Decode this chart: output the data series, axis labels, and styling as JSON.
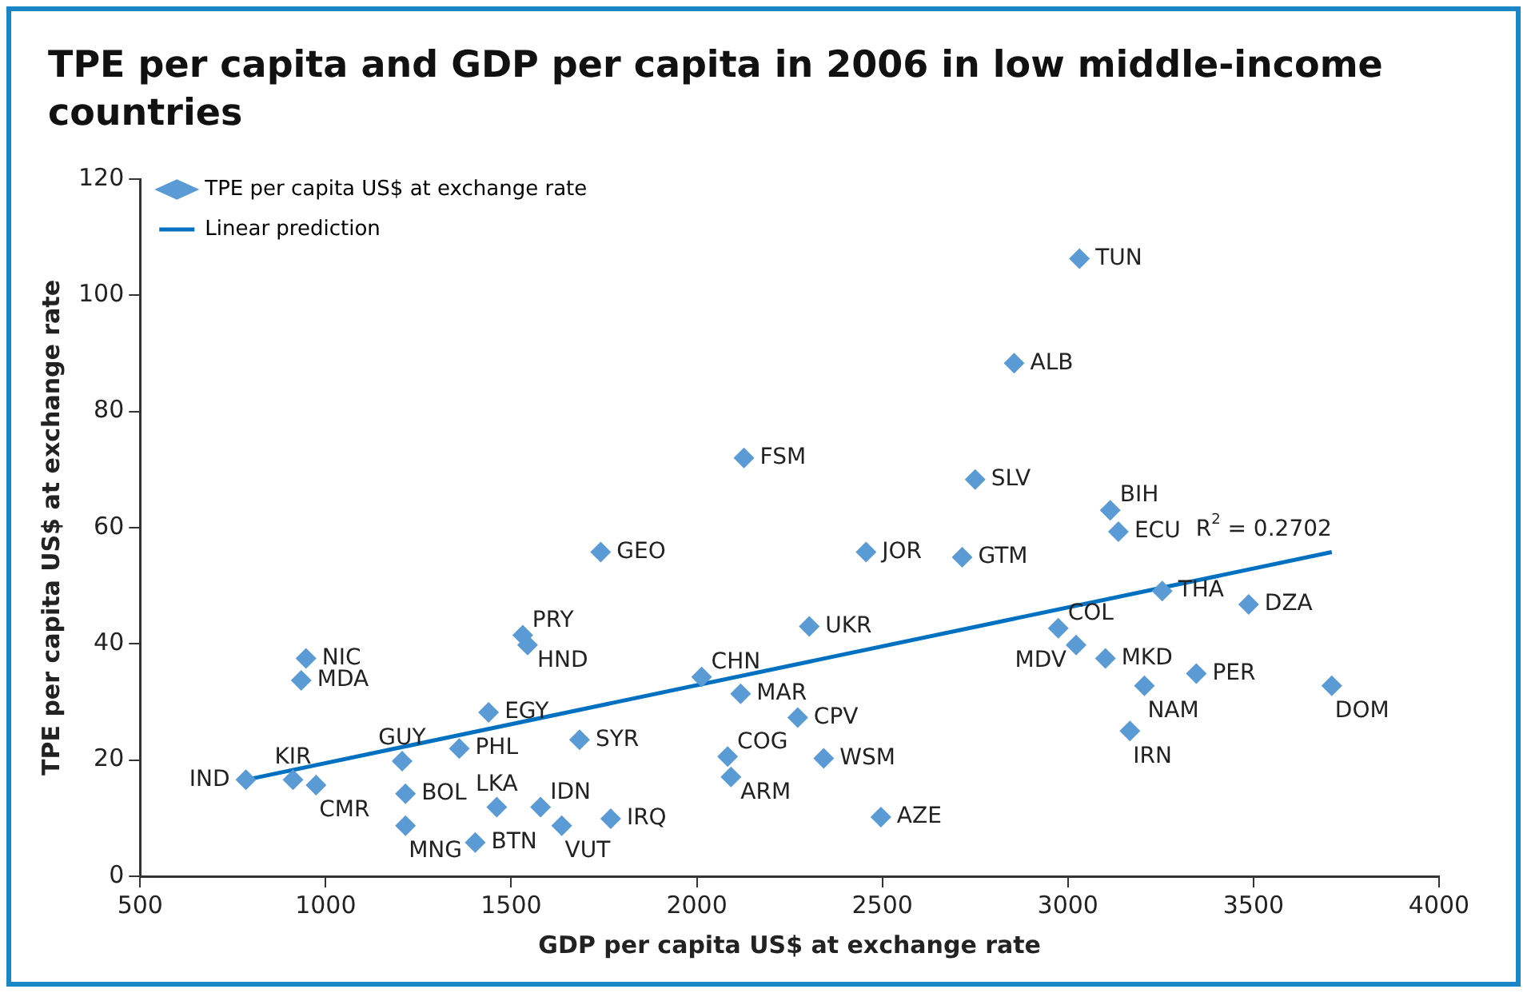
{
  "chart_data": {
    "type": "scatter",
    "title": "TPE per capita and GDP per capita in 2006 in low middle-income countries",
    "xlabel": "GDP per capita US$ at exchange rate",
    "ylabel": "TPE per capita US$ at exchange rate",
    "xlim": [
      500,
      4000
    ],
    "xticks": [
      500,
      1000,
      1500,
      2000,
      2500,
      3000,
      3500,
      4000
    ],
    "ylim": [
      0,
      120
    ],
    "yticks": [
      0,
      20,
      40,
      60,
      80,
      100,
      120
    ],
    "grid": false,
    "legend": "top left",
    "marker": "diamond",
    "series": [
      {
        "name": "TPE per capita US$ at exchange rate",
        "type": "scatter",
        "color": "#5b9bd5",
        "x": [
          785,
          912,
          974,
          947,
          934,
          1206,
          1215,
          1215,
          1360,
          1439,
          1531,
          1544,
          1461,
          1403,
          1579,
          1636,
          1768,
          1684,
          1741,
          2013,
          2118,
          2272,
          2083,
          2092,
          2342,
          2496,
          2303,
          2127,
          2456,
          2715,
          2750,
          2855,
          3031,
          3114,
          3136,
          3254,
          3487,
          2974,
          3022,
          3101,
          3206,
          3346,
          3167,
          3711
        ],
        "values": [
          16.6,
          16.6,
          15.7,
          37.5,
          33.7,
          19.8,
          14.2,
          8.7,
          22,
          28.2,
          41.5,
          39.8,
          11.9,
          5.8,
          11.9,
          8.7,
          9.9,
          23.5,
          55.8,
          34.3,
          31.4,
          27.3,
          20.6,
          17.1,
          20.3,
          10.2,
          43,
          72,
          55.8,
          54.9,
          68.3,
          88.3,
          106.3,
          63,
          59.3,
          49.1,
          46.8,
          42.7,
          39.8,
          37.5,
          32.8,
          34.9,
          25,
          32.8
        ]
      },
      {
        "name": "Linear prediction",
        "type": "line",
        "color": "#0070c0",
        "marker": "none",
        "x": [
          785,
          3711
        ],
        "values": [
          16.6,
          55.8
        ]
      }
    ],
    "annotations": [
      {
        "text": "IND",
        "x": 785,
        "y": 16.6
      },
      {
        "text": "KIR",
        "x": 912,
        "y": 16.6
      },
      {
        "text": "CMR",
        "x": 974,
        "y": 15.7
      },
      {
        "text": "NIC",
        "x": 947,
        "y": 37.5
      },
      {
        "text": "MDA",
        "x": 934,
        "y": 33.7
      },
      {
        "text": "GUY",
        "x": 1206,
        "y": 19.8
      },
      {
        "text": "BOL",
        "x": 1215,
        "y": 14.2
      },
      {
        "text": "MNG",
        "x": 1215,
        "y": 8.7
      },
      {
        "text": "PHL",
        "x": 1360,
        "y": 22
      },
      {
        "text": "EGY",
        "x": 1439,
        "y": 28.2
      },
      {
        "text": "PRY",
        "x": 1531,
        "y": 41.5
      },
      {
        "text": "HND",
        "x": 1544,
        "y": 39.8
      },
      {
        "text": "LKA",
        "x": 1461,
        "y": 11.9
      },
      {
        "text": "BTN",
        "x": 1403,
        "y": 5.8
      },
      {
        "text": "IDN",
        "x": 1579,
        "y": 11.9
      },
      {
        "text": "VUT",
        "x": 1636,
        "y": 8.7
      },
      {
        "text": "IRQ",
        "x": 1768,
        "y": 9.9
      },
      {
        "text": "SYR",
        "x": 1684,
        "y": 23.5
      },
      {
        "text": "GEO",
        "x": 1741,
        "y": 55.8
      },
      {
        "text": "CHN",
        "x": 2013,
        "y": 34.3
      },
      {
        "text": "MAR",
        "x": 2118,
        "y": 31.4
      },
      {
        "text": "CPV",
        "x": 2272,
        "y": 27.3
      },
      {
        "text": "COG",
        "x": 2083,
        "y": 20.6
      },
      {
        "text": "ARM",
        "x": 2092,
        "y": 17.1
      },
      {
        "text": "WSM",
        "x": 2342,
        "y": 20.3
      },
      {
        "text": "AZE",
        "x": 2496,
        "y": 10.2
      },
      {
        "text": "UKR",
        "x": 2303,
        "y": 43
      },
      {
        "text": "FSM",
        "x": 2127,
        "y": 72
      },
      {
        "text": "JOR",
        "x": 2456,
        "y": 55.8
      },
      {
        "text": "GTM",
        "x": 2715,
        "y": 54.9
      },
      {
        "text": "SLV",
        "x": 2750,
        "y": 68.3
      },
      {
        "text": "ALB",
        "x": 2855,
        "y": 88.3
      },
      {
        "text": "TUN",
        "x": 3031,
        "y": 106.3
      },
      {
        "text": "BIH",
        "x": 3114,
        "y": 63
      },
      {
        "text": "ECU",
        "x": 3136,
        "y": 59.3
      },
      {
        "text": "THA",
        "x": 3254,
        "y": 49.1
      },
      {
        "text": "DZA",
        "x": 3487,
        "y": 46.8
      },
      {
        "text": "COL",
        "x": 2974,
        "y": 42.7
      },
      {
        "text": "MDV",
        "x": 3022,
        "y": 39.8
      },
      {
        "text": "MKD",
        "x": 3101,
        "y": 37.5
      },
      {
        "text": "NAM",
        "x": 3206,
        "y": 32.8
      },
      {
        "text": "PER",
        "x": 3346,
        "y": 34.9
      },
      {
        "text": "IRN",
        "x": 3167,
        "y": 25
      },
      {
        "text": "DOM",
        "x": 3711,
        "y": 32.8
      },
      {
        "text": "R$^{2}$ = 0.2702",
        "x": 3711,
        "y": 55.8
      }
    ]
  }
}
